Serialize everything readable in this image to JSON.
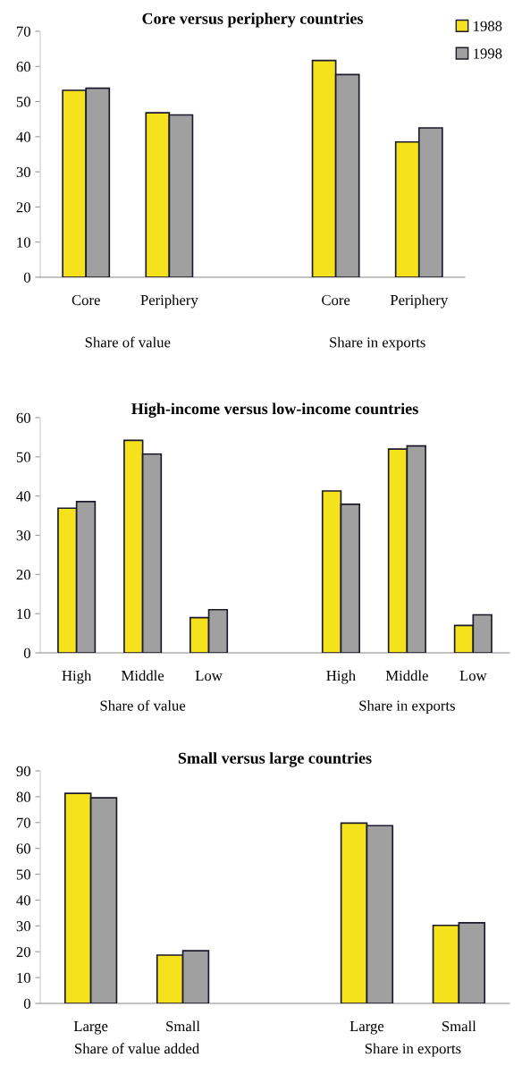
{
  "chart_data": [
    {
      "type": "bar",
      "title": "Core versus periphery countries",
      "categories": [
        "Core",
        "Periphery",
        null,
        "Core",
        "Periphery"
      ],
      "series": [
        {
          "name": "1988",
          "color": "#f5e21c",
          "values": [
            53.2,
            46.8,
            null,
            61.7,
            38.5
          ]
        },
        {
          "name": "1998",
          "color": "#a0a0a0",
          "values": [
            53.8,
            46.2,
            null,
            57.7,
            42.5
          ]
        }
      ],
      "annotations": [
        "Share of value",
        "Share in exports"
      ],
      "ylim": [
        0,
        70
      ],
      "yticks": [
        0,
        10,
        20,
        30,
        40,
        50,
        60,
        70
      ],
      "legend": "top right",
      "grid": false
    },
    {
      "type": "bar",
      "title": "High-income versus low-income countries",
      "categories": [
        "High",
        "Middle",
        "Low",
        null,
        "High",
        "Middle",
        "Low"
      ],
      "series": [
        {
          "color": "#f5e21c",
          "values": [
            36.9,
            54.2,
            9.0,
            null,
            41.3,
            52.0,
            7.0
          ]
        },
        {
          "color": "#a0a0a0",
          "values": [
            38.6,
            50.7,
            11.0,
            null,
            37.9,
            52.8,
            9.7
          ]
        }
      ],
      "annotations": [
        "Share of value",
        "Share in exports"
      ],
      "ylim": [
        0,
        60
      ],
      "yticks": [
        0,
        10,
        20,
        30,
        40,
        50,
        60
      ],
      "grid": false
    },
    {
      "type": "bar",
      "title": "Small versus large countries",
      "categories": [
        "Large",
        "Small",
        null,
        "Large",
        "Small"
      ],
      "series": [
        {
          "color": "#f5e21c",
          "values": [
            81.3,
            18.7,
            null,
            69.8,
            30.2
          ]
        },
        {
          "color": "#a0a0a0",
          "values": [
            79.6,
            20.4,
            null,
            68.8,
            31.2
          ]
        }
      ],
      "annotations": [
        "Share of value added",
        "Share in exports"
      ],
      "ylim": [
        0,
        90
      ],
      "yticks": [
        0,
        10,
        20,
        30,
        40,
        50,
        60,
        70,
        80,
        90
      ],
      "grid": false
    }
  ]
}
